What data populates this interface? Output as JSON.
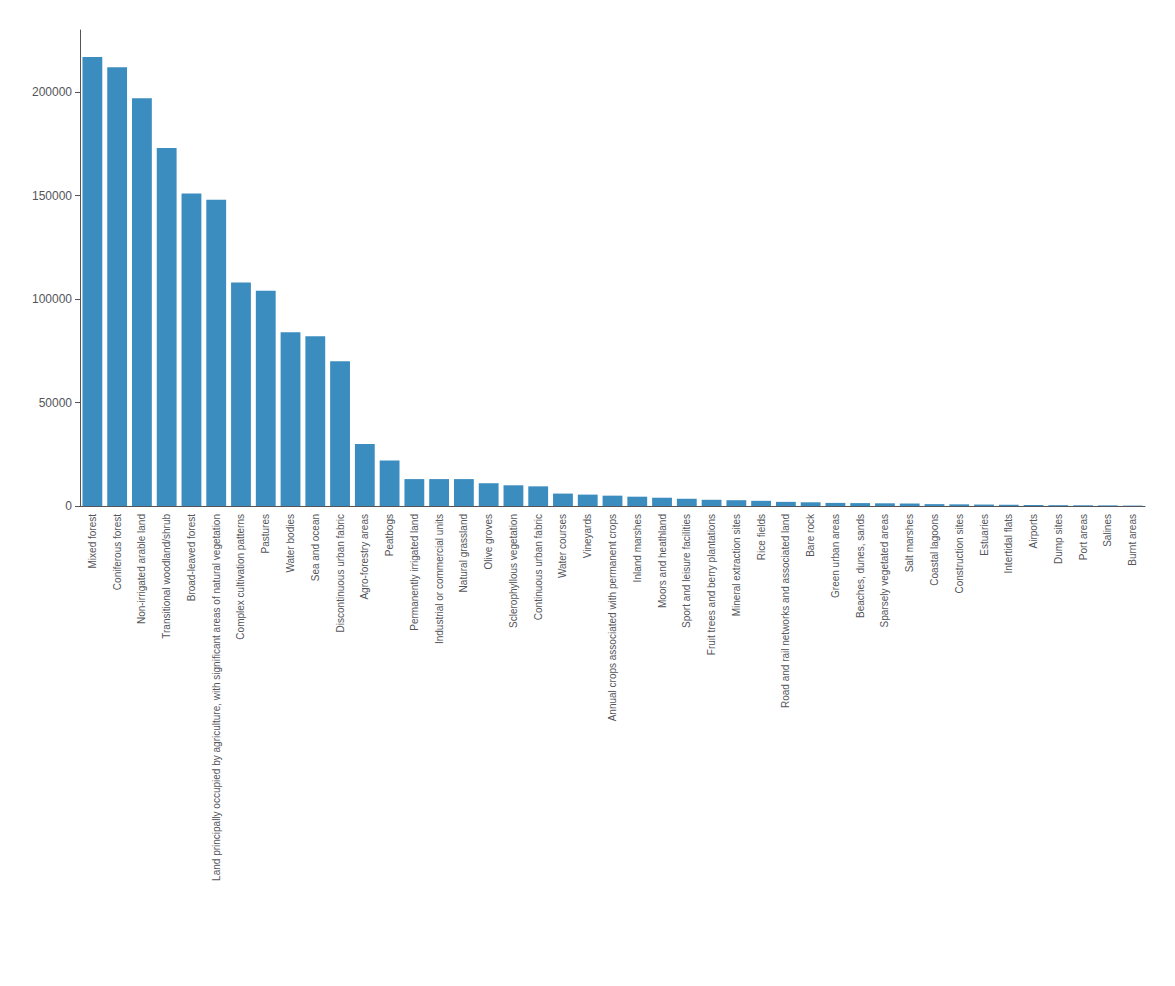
{
  "chart_data": {
    "type": "bar",
    "categories": [
      "Mixed forest",
      "Coniferous forest",
      "Non-irrigated arable land",
      "Transitional woodland/shrub",
      "Broad-leaved forest",
      "Land principally occupied by agriculture, with significant areas of natural vegetation",
      "Complex cultivation patterns",
      "Pastures",
      "Water bodies",
      "Sea and ocean",
      "Discontinuous urban fabric",
      "Agro-forestry areas",
      "Peatbogs",
      "Permanently irrigated land",
      "Industrial or commercial units",
      "Natural grassland",
      "Olive groves",
      "Sclerophyllous vegetation",
      "Continuous urban fabric",
      "Water courses",
      "Vineyards",
      "Annual crops associated with permanent crops",
      "Inland marshes",
      "Moors and heathland",
      "Sport and leisure facilities",
      "Fruit trees and berry plantations",
      "Mineral extraction sites",
      "Rice fields",
      "Road and rail networks and associated land",
      "Bare rock",
      "Green urban areas",
      "Beaches, dunes, sands",
      "Sparsely vegetated areas",
      "Salt marshes",
      "Coastal lagoons",
      "Construction sites",
      "Estuaries",
      "Intertidal flats",
      "Airports",
      "Dump sites",
      "Port areas",
      "Salines",
      "Burnt areas"
    ],
    "values": [
      217000,
      212000,
      197000,
      173000,
      151000,
      148000,
      108000,
      104000,
      84000,
      82000,
      70000,
      30000,
      22000,
      13000,
      13000,
      13000,
      11000,
      10000,
      9500,
      6000,
      5500,
      5000,
      4500,
      4000,
      3500,
      3000,
      2800,
      2500,
      2000,
      1800,
      1500,
      1400,
      1300,
      1200,
      900,
      800,
      700,
      600,
      500,
      400,
      350,
      300,
      200
    ],
    "color": "#3b8cbf",
    "ylim": [
      0,
      230000
    ],
    "yticks": [
      0,
      50000,
      100000,
      150000,
      200000
    ],
    "grid": false
  }
}
